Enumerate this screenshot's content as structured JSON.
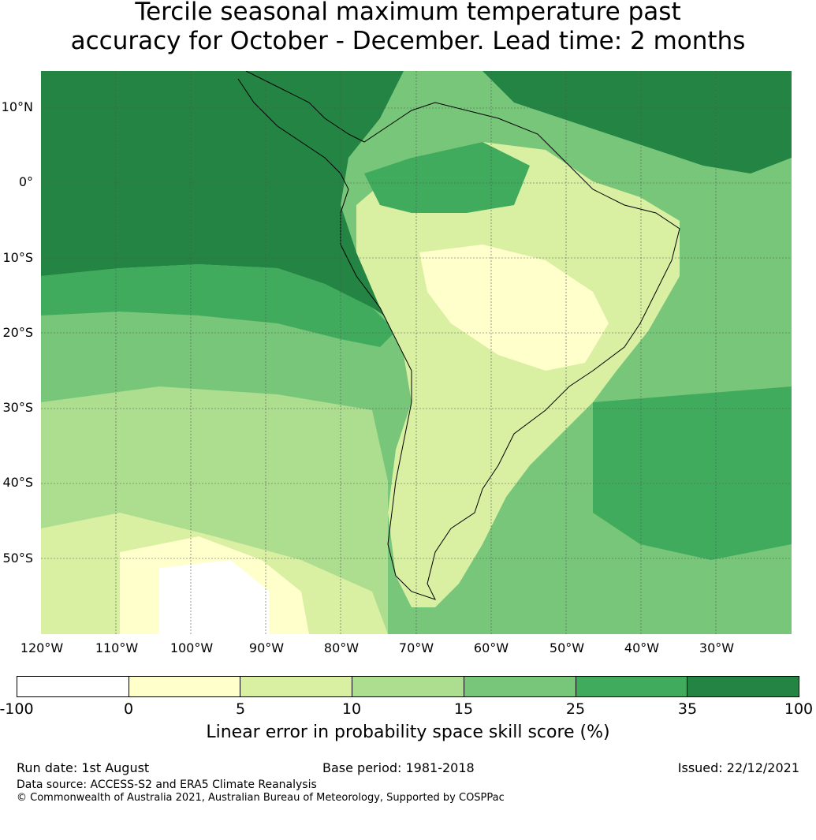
{
  "title_line1": "Tercile seasonal maximum temperature past",
  "title_line2": "accuracy for October - December. Lead time: 2 months",
  "lat_labels": [
    "10°N",
    "0°",
    "10°S",
    "20°S",
    "30°S",
    "40°S",
    "50°S"
  ],
  "lon_labels": [
    "120°W",
    "110°W",
    "100°W",
    "90°W",
    "80°W",
    "70°W",
    "60°W",
    "50°W",
    "40°W",
    "30°W"
  ],
  "colorbar": {
    "ticks": [
      "-100",
      "0",
      "5",
      "10",
      "15",
      "25",
      "35",
      "100"
    ],
    "colors": [
      "#ffffff",
      "#ffffcc",
      "#d9f0a3",
      "#addd8e",
      "#78c679",
      "#41ab5d",
      "#238443"
    ],
    "label": "Linear error in probability space skill score (%)"
  },
  "footer": {
    "run_date": "Run date: 1st August",
    "base_period": "Base period: 1981-2018",
    "issued": "Issued: 22/12/2021",
    "data_source": "Data source: ACCESS-S2 and ERA5 Climate Reanalysis",
    "copyright": "© Commonwealth of Australia 2021, Australian Bureau of Meteorology, Supported by COSPPac"
  }
}
